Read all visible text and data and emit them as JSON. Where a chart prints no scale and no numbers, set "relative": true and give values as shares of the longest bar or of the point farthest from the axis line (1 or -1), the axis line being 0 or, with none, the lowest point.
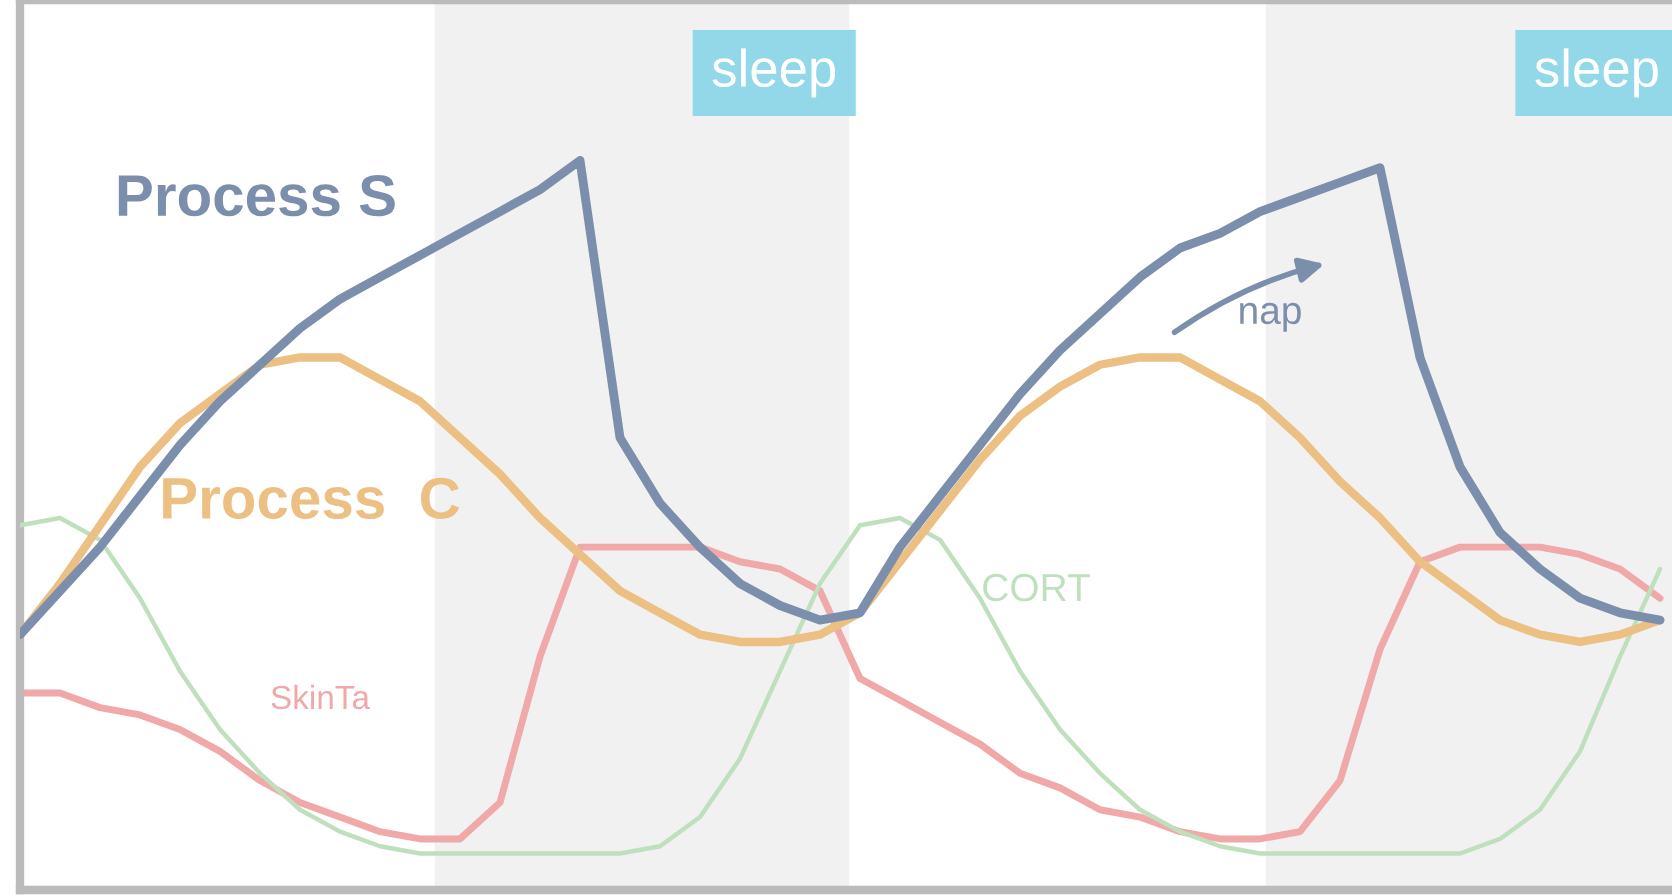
{
  "chart_data": {
    "type": "line",
    "relative": true,
    "categories": [
      null,
      null,
      null,
      null,
      null,
      null,
      null,
      null,
      null,
      null,
      null,
      null,
      null,
      null,
      null,
      null,
      null,
      null,
      null,
      null,
      null,
      null,
      null,
      null,
      null,
      null,
      null,
      null,
      null,
      null,
      null,
      null,
      null,
      null,
      null,
      null,
      null,
      null,
      null,
      null,
      null,
      null
    ],
    "series": [
      {
        "name": "SkinTa",
        "color": "#f0a8a8",
        "values": [
          0.27,
          0.27,
          0.25,
          0.24,
          0.22,
          0.19,
          0.15,
          0.12,
          0.1,
          0.08,
          0.07,
          0.07,
          0.12,
          0.32,
          0.47,
          0.47,
          0.47,
          0.47,
          0.45,
          0.44,
          0.41,
          0.29,
          0.26,
          0.23,
          0.2,
          0.16,
          0.14,
          0.11,
          0.1,
          0.08,
          0.07,
          0.07,
          0.08,
          0.15,
          0.33,
          0.45,
          0.47,
          0.47,
          0.47,
          0.46,
          0.44,
          0.4
        ]
      },
      {
        "name": "CORT",
        "color": "#bfe0bc",
        "values": [
          0.5,
          0.51,
          0.48,
          0.4,
          0.3,
          0.22,
          0.16,
          0.11,
          0.08,
          0.06,
          0.05,
          0.05,
          0.05,
          0.05,
          0.05,
          0.05,
          0.06,
          0.1,
          0.18,
          0.3,
          0.42,
          0.5,
          0.51,
          0.48,
          0.4,
          0.3,
          0.22,
          0.16,
          0.11,
          0.08,
          0.06,
          0.05,
          0.05,
          0.05,
          0.05,
          0.05,
          0.05,
          0.07,
          0.11,
          0.19,
          0.32,
          0.44
        ]
      },
      {
        "name": "Process  C",
        "color": "#ecbf82",
        "values": [
          0.35,
          0.42,
          0.5,
          0.58,
          0.64,
          0.68,
          0.72,
          0.73,
          0.73,
          0.7,
          0.67,
          0.62,
          0.57,
          0.51,
          0.46,
          0.41,
          0.38,
          0.35,
          0.34,
          0.34,
          0.35,
          0.38,
          0.45,
          0.52,
          0.59,
          0.65,
          0.69,
          0.72,
          0.73,
          0.73,
          0.7,
          0.67,
          0.62,
          0.56,
          0.51,
          0.45,
          0.41,
          0.37,
          0.35,
          0.34,
          0.35,
          0.37
        ]
      },
      {
        "name": "Process S",
        "color": "#7b8fac",
        "values": [
          0.35,
          0.41,
          0.47,
          0.54,
          0.61,
          0.67,
          0.72,
          0.77,
          0.81,
          0.84,
          0.87,
          0.9,
          0.93,
          0.96,
          1,
          0.62,
          0.53,
          0.47,
          0.42,
          0.39,
          0.37,
          0.38,
          0.47,
          0.54,
          0.61,
          0.68,
          0.74,
          0.79,
          0.84,
          0.88,
          0.9,
          0.93,
          0.95,
          0.97,
          0.99,
          0.73,
          0.58,
          0.49,
          0.44,
          0.4,
          0.38,
          0.37
        ]
      }
    ],
    "annotations": [
      "sleep",
      "sleep",
      "nap"
    ]
  }
}
